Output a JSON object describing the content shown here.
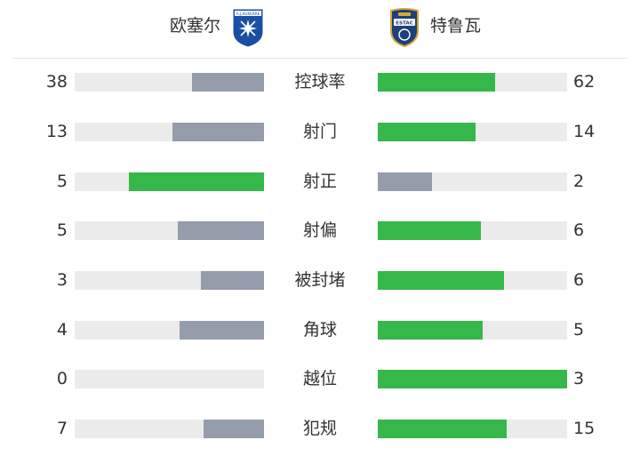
{
  "colors": {
    "leader": "#35b74a",
    "trailer": "#959cac",
    "track": "#ebebeb"
  },
  "header": {
    "home_team": "欧塞尔",
    "away_team": "特鲁瓦",
    "home_crest_icon": "auxerre-crest-icon",
    "away_crest_icon": "troyes-crest-icon",
    "home_crest_text": "A.J.AUXERRE",
    "away_crest_text": "ESTAC"
  },
  "stats": [
    {
      "label": "控球率",
      "home": "38",
      "away": "62",
      "home_value": 38,
      "away_value": 62
    },
    {
      "label": "射门",
      "home": "13",
      "away": "14",
      "home_value": 13,
      "away_value": 14
    },
    {
      "label": "射正",
      "home": "5",
      "away": "2",
      "home_value": 5,
      "away_value": 2
    },
    {
      "label": "射偏",
      "home": "5",
      "away": "6",
      "home_value": 5,
      "away_value": 6
    },
    {
      "label": "被封堵",
      "home": "3",
      "away": "6",
      "home_value": 3,
      "away_value": 6
    },
    {
      "label": "角球",
      "home": "4",
      "away": "5",
      "home_value": 4,
      "away_value": 5
    },
    {
      "label": "越位",
      "home": "0",
      "away": "3",
      "home_value": 0,
      "away_value": 3
    },
    {
      "label": "犯规",
      "home": "7",
      "away": "15",
      "home_value": 7,
      "away_value": 15
    }
  ]
}
